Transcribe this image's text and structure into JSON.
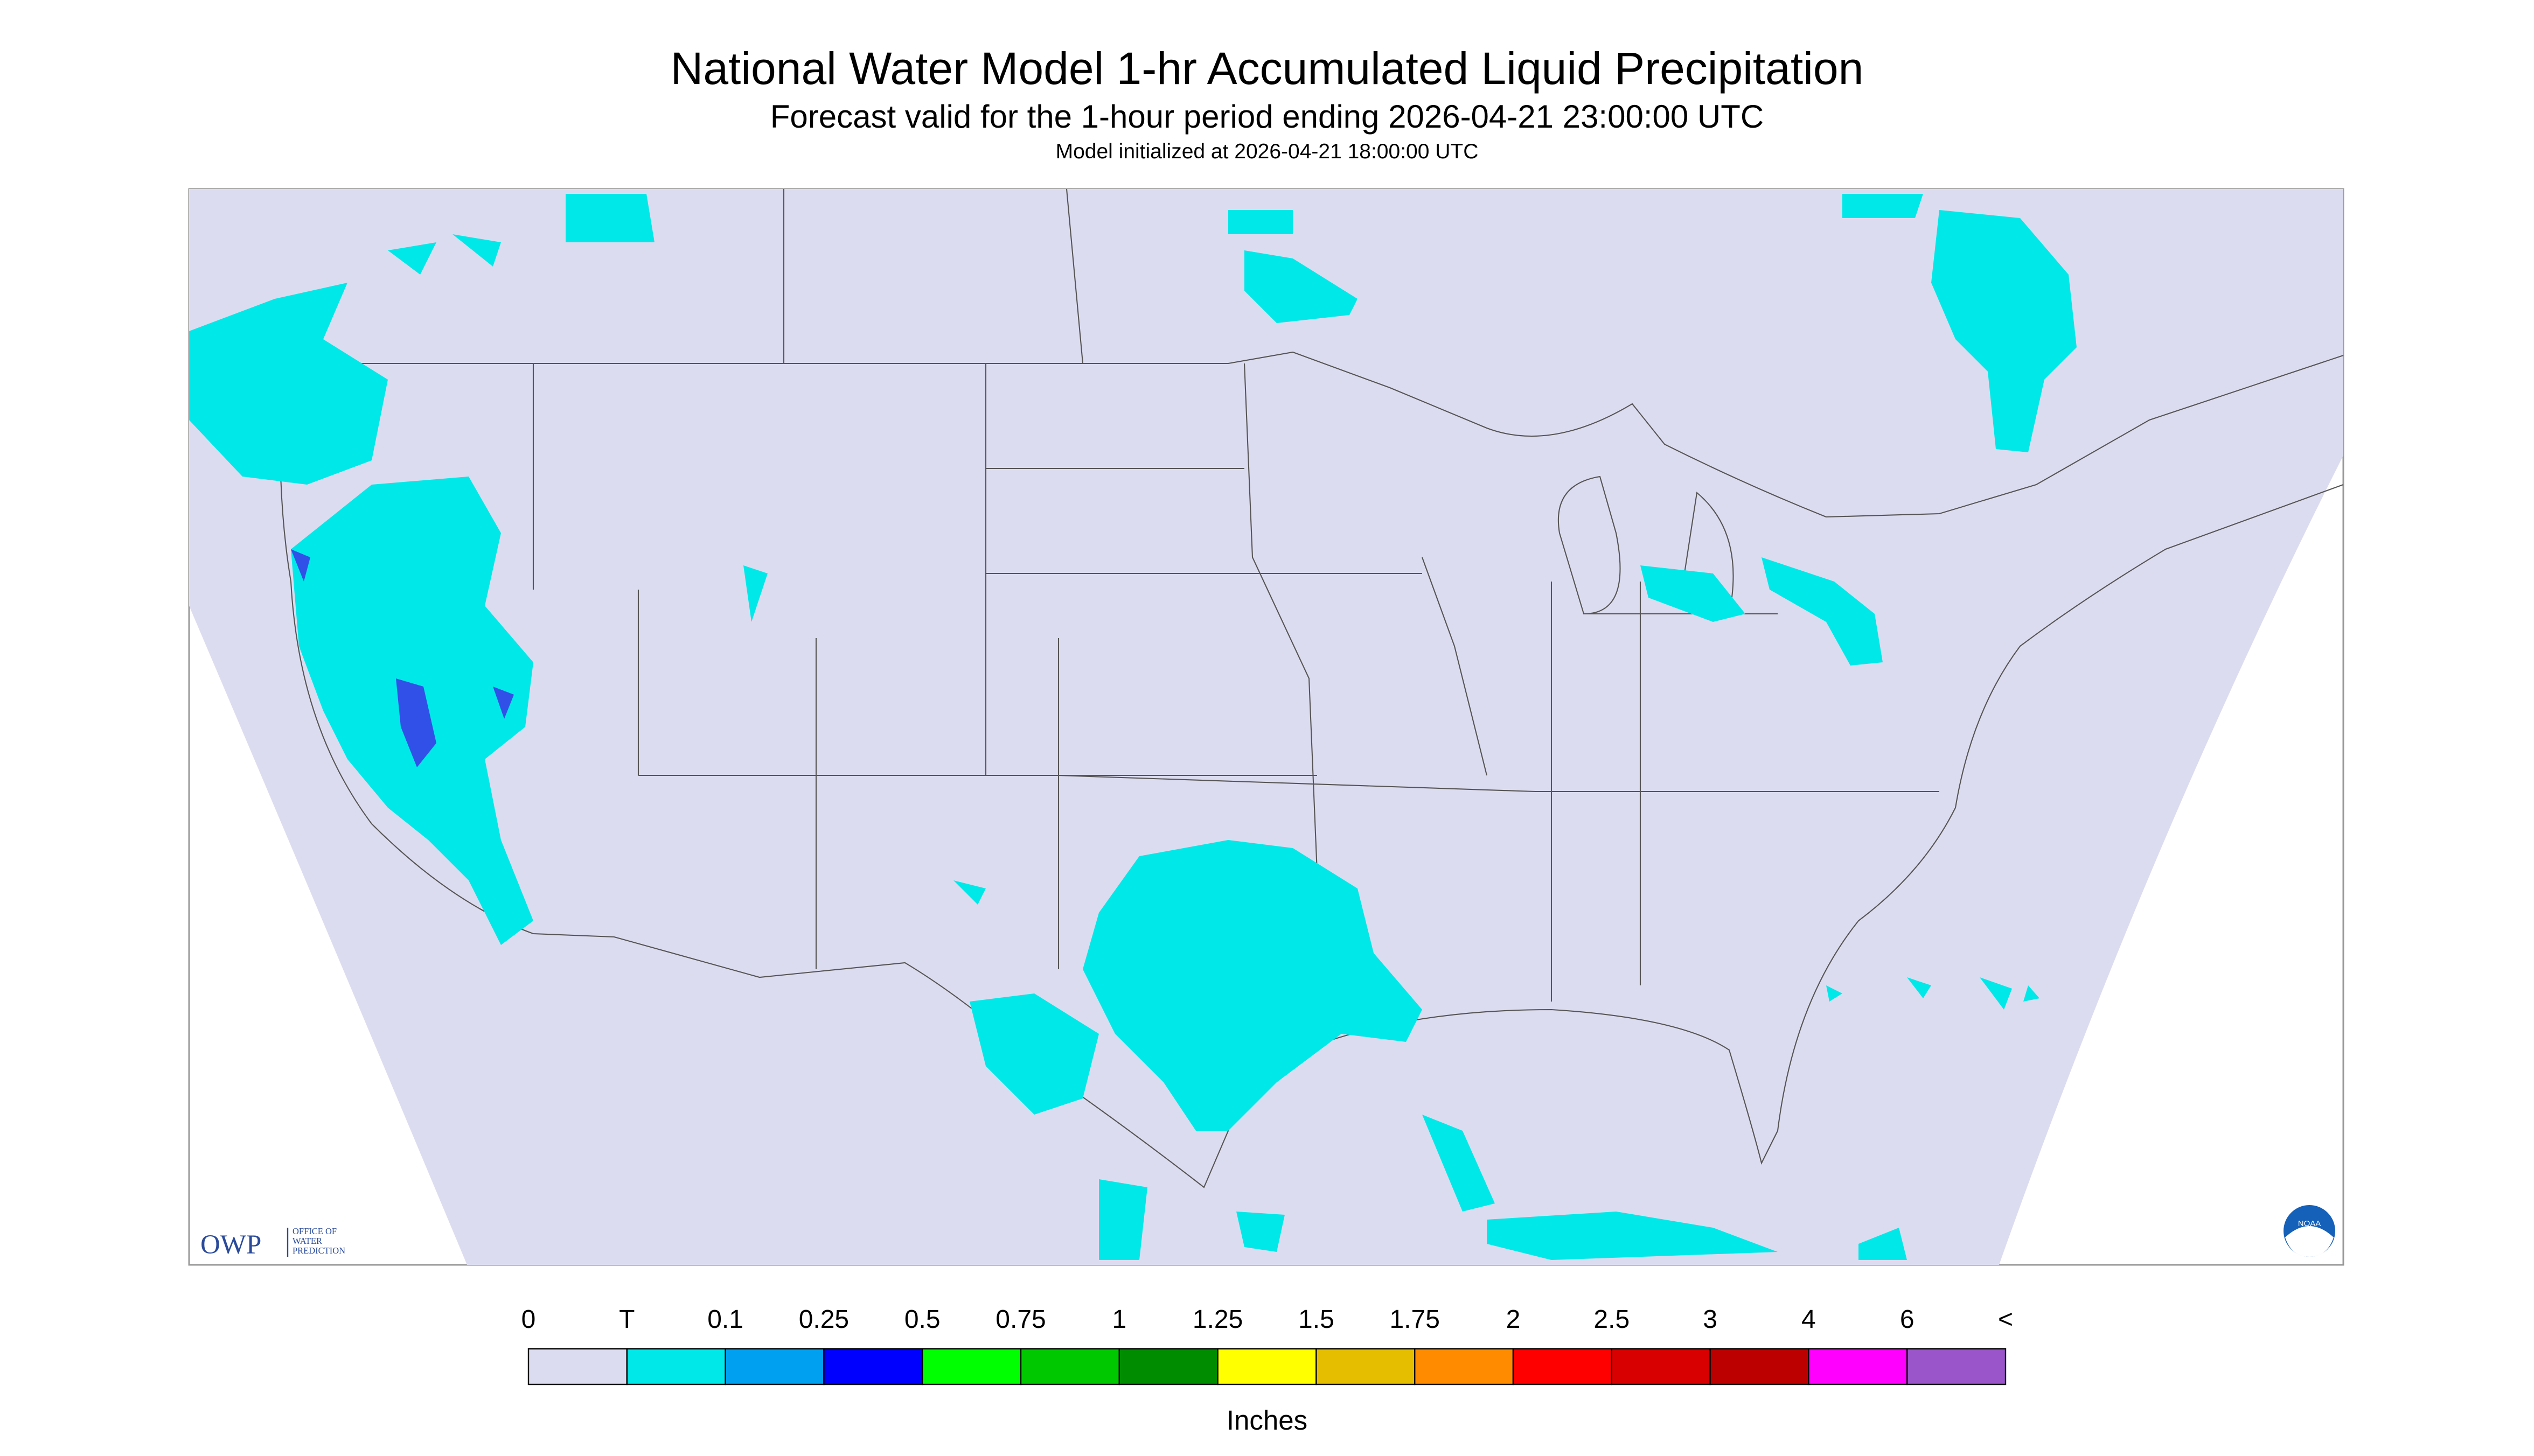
{
  "header": {
    "title": "National Water Model 1-hr Accumulated Liquid Precipitation",
    "subtitle": "Forecast valid for the 1-hour period ending 2026-04-21 23:00:00 UTC",
    "note": "Model initialized at 2026-04-21 18:00:00 UTC"
  },
  "logos": {
    "owp": "OWP",
    "owp_lines": [
      "OFFICE OF",
      "WATER",
      "PREDICTION"
    ],
    "noaa": "NOAA"
  },
  "legend": {
    "labels": [
      "0",
      "T",
      "0.1",
      "0.25",
      "0.5",
      "0.75",
      "1",
      "1.25",
      "1.5",
      "1.75",
      "2",
      "2.5",
      "3",
      "4",
      "6",
      "<"
    ],
    "colors": [
      "#dcdcf0",
      "#00e8e8",
      "#00a0f0",
      "#0000ff",
      "#00ff00",
      "#00c800",
      "#008c00",
      "#ffff00",
      "#e5be00",
      "#ff8c00",
      "#ff0000",
      "#d80000",
      "#bc0000",
      "#ff00ff",
      "#9955c9"
    ],
    "unit": "Inches"
  }
}
